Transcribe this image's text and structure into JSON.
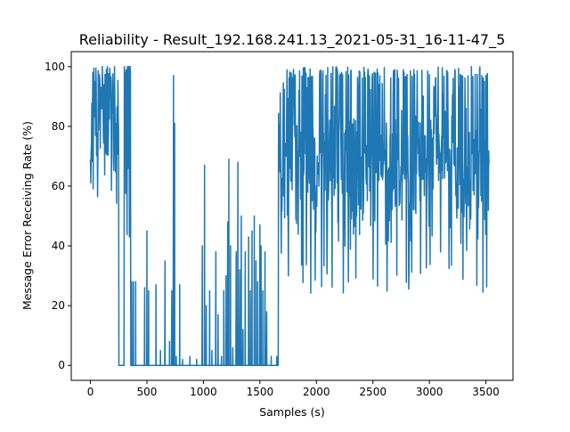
{
  "chart_data": {
    "type": "line",
    "title": "Reliability - Result_192.168.241.13_2021-05-31_16-11-47_5",
    "xlabel": "Samples (s)",
    "ylabel": "Message Error Receiving Rate (%)",
    "xlim": [
      -170,
      3740
    ],
    "ylim": [
      -5,
      105
    ],
    "xticks": [
      0,
      500,
      1000,
      1500,
      2000,
      2500,
      3000,
      3500
    ],
    "yticks": [
      0,
      20,
      40,
      60,
      80,
      100
    ],
    "grid": false,
    "legend": "none",
    "series": [
      {
        "color": "#1f77b4",
        "segments": [
          {
            "x_start": 0,
            "x_end": 250,
            "low": 50,
            "high": 100,
            "center": 82,
            "noise": 14
          },
          {
            "x_start": 250,
            "x_end": 300,
            "low": 0,
            "high": 0,
            "center": 0,
            "noise": 0
          },
          {
            "x_start": 300,
            "x_end": 355,
            "low": 43,
            "high": 100,
            "center": 88,
            "noise": 22
          },
          {
            "x_start": 355,
            "x_end": 1665,
            "low": 0,
            "high": 0,
            "center": 0,
            "noise": 0
          },
          {
            "x_start": 1665,
            "x_end": 3530,
            "low": 24,
            "high": 100,
            "center": 68,
            "noise": 15
          }
        ],
        "spikes": [
          {
            "x": 345,
            "y": 43
          },
          {
            "x": 365,
            "y": 28
          },
          {
            "x": 380,
            "y": 28
          },
          {
            "x": 400,
            "y": 28
          },
          {
            "x": 480,
            "y": 26
          },
          {
            "x": 500,
            "y": 45
          },
          {
            "x": 515,
            "y": 25
          },
          {
            "x": 580,
            "y": 27
          },
          {
            "x": 620,
            "y": 5
          },
          {
            "x": 660,
            "y": 35
          },
          {
            "x": 700,
            "y": 8
          },
          {
            "x": 720,
            "y": 25
          },
          {
            "x": 735,
            "y": 97
          },
          {
            "x": 745,
            "y": 81
          },
          {
            "x": 760,
            "y": 3
          },
          {
            "x": 790,
            "y": 27
          },
          {
            "x": 815,
            "y": 2
          },
          {
            "x": 880,
            "y": 3
          },
          {
            "x": 940,
            "y": 2
          },
          {
            "x": 990,
            "y": 40
          },
          {
            "x": 1010,
            "y": 67
          },
          {
            "x": 1025,
            "y": 20
          },
          {
            "x": 1055,
            "y": 25
          },
          {
            "x": 1075,
            "y": 5
          },
          {
            "x": 1110,
            "y": 38
          },
          {
            "x": 1130,
            "y": 17
          },
          {
            "x": 1160,
            "y": 3
          },
          {
            "x": 1180,
            "y": 25
          },
          {
            "x": 1200,
            "y": 30
          },
          {
            "x": 1215,
            "y": 48
          },
          {
            "x": 1225,
            "y": 69
          },
          {
            "x": 1240,
            "y": 40
          },
          {
            "x": 1260,
            "y": 6
          },
          {
            "x": 1290,
            "y": 38
          },
          {
            "x": 1305,
            "y": 68
          },
          {
            "x": 1320,
            "y": 32
          },
          {
            "x": 1335,
            "y": 50
          },
          {
            "x": 1350,
            "y": 12
          },
          {
            "x": 1370,
            "y": 38
          },
          {
            "x": 1400,
            "y": 43
          },
          {
            "x": 1415,
            "y": 25
          },
          {
            "x": 1430,
            "y": 45
          },
          {
            "x": 1450,
            "y": 50
          },
          {
            "x": 1465,
            "y": 35
          },
          {
            "x": 1480,
            "y": 28
          },
          {
            "x": 1500,
            "y": 47
          },
          {
            "x": 1510,
            "y": 40
          },
          {
            "x": 1525,
            "y": 25
          },
          {
            "x": 1545,
            "y": 38
          },
          {
            "x": 1560,
            "y": 18
          },
          {
            "x": 1600,
            "y": 3
          },
          {
            "x": 1650,
            "y": 3
          }
        ]
      }
    ]
  }
}
